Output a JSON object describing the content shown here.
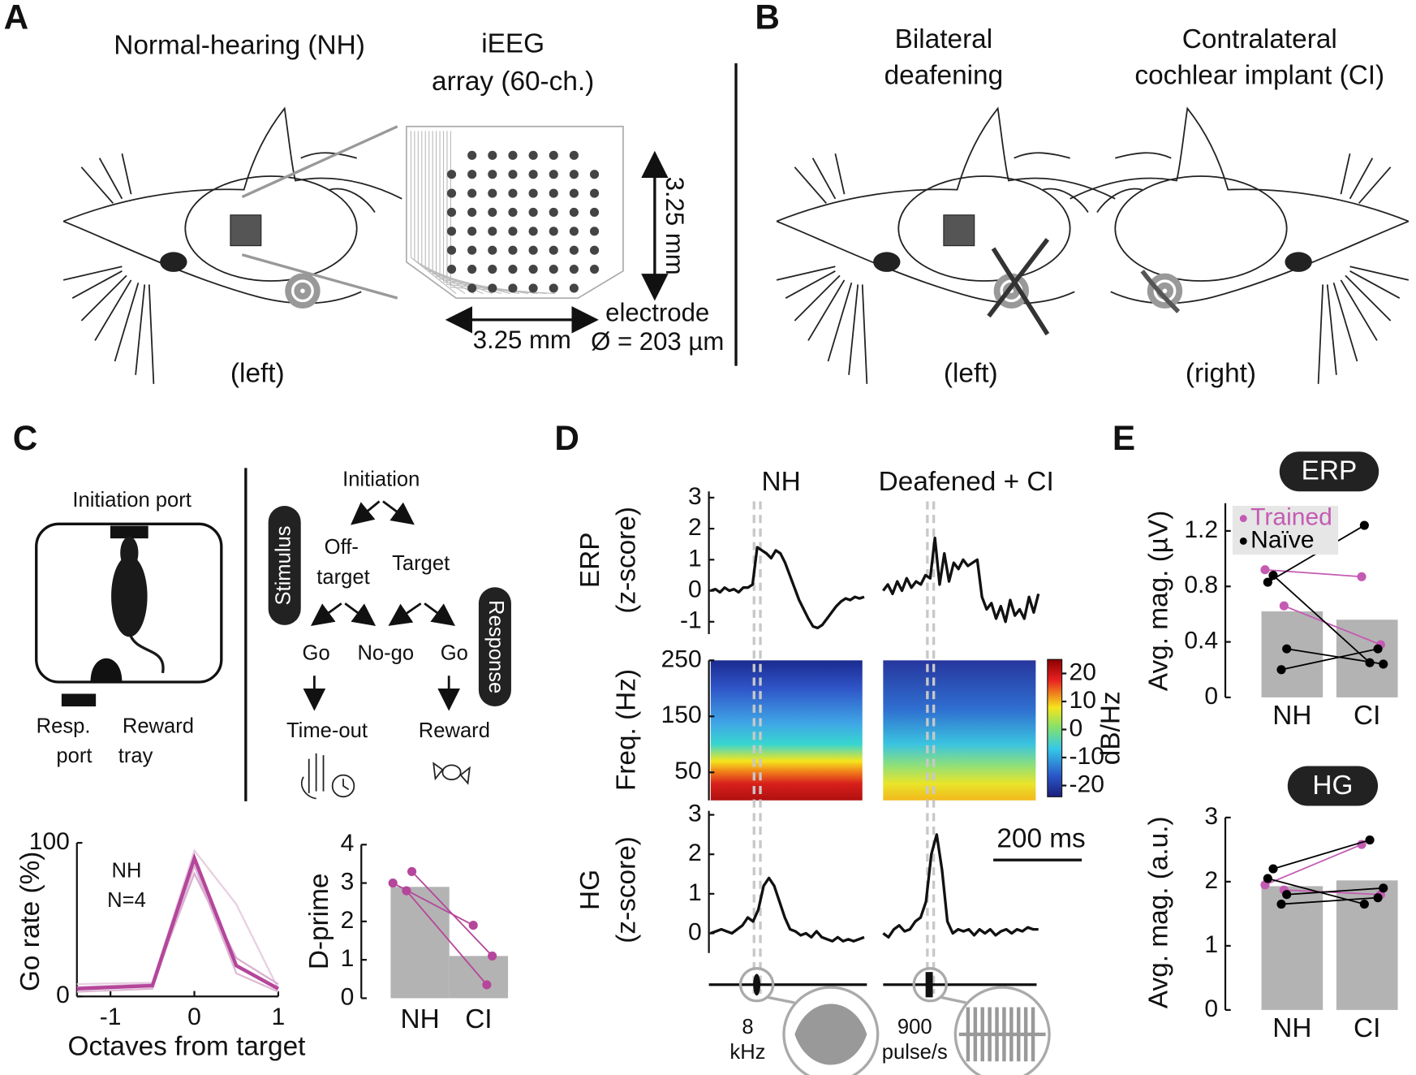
{
  "panels": {
    "a": {
      "letter": "A",
      "heading": "Normal-hearing (NH)",
      "array_title": [
        "iEEG",
        "array (60-ch.)"
      ],
      "height_label": "3.25 mm",
      "width_label": "3.25 mm",
      "electrode": [
        "electrode",
        "Ø = 203 µm"
      ],
      "side": "(left)"
    },
    "b": {
      "letter": "B",
      "deafening": [
        "Bilateral",
        "deafening"
      ],
      "implant": [
        "Contralateral",
        "cochlear implant (CI)"
      ],
      "left": "(left)",
      "right": "(right)"
    },
    "c": {
      "letter": "C",
      "initiation_port": "Initiation port",
      "resp_port": [
        "Resp.",
        "port"
      ],
      "reward_tray": [
        "Reward",
        "tray"
      ],
      "tree": {
        "initiation": "Initiation",
        "stimulus": "Stimulus",
        "off_target": [
          "Off-",
          "target"
        ],
        "target": "Target",
        "response": "Response",
        "go_left": "Go",
        "no_go": "No-go",
        "go_right": "Go",
        "time_out": "Time-out",
        "reward": "Reward"
      },
      "go_rate_note": [
        "NH",
        "N=4"
      ]
    },
    "d": {
      "letter": "D",
      "nh": "NH",
      "ci": "Deafened + CI",
      "scale_bar": "200 ms",
      "stim_nh": [
        "8",
        "kHz"
      ],
      "stim_ci": [
        "900",
        "pulse/s"
      ]
    },
    "e": {
      "letter": "E",
      "erp_badge": "ERP",
      "hg_badge": "HG"
    }
  },
  "chart_data": [
    {
      "type": "line",
      "xlabel": "Octaves from target",
      "ylabel": [
        "Go rate (%)"
      ],
      "x": [
        -1.4,
        -0.5,
        0,
        0.5,
        1
      ],
      "xlim": [
        -1.4,
        1
      ],
      "xticks": [
        -1,
        0,
        1
      ],
      "ylim": [
        0,
        100
      ],
      "yticks": [
        0,
        100
      ],
      "series": [
        {
          "color": "#e6cfe0",
          "values": [
            8,
            9,
            95,
            60,
            5
          ]
        },
        {
          "color": "#dcb8d3",
          "values": [
            3,
            5,
            85,
            15,
            3
          ]
        },
        {
          "color": "#d9aed0",
          "values": [
            6,
            8,
            80,
            25,
            8
          ]
        },
        {
          "color": "#b5469b",
          "values": [
            5,
            7,
            90,
            20,
            5
          ]
        }
      ]
    },
    {
      "type": "bar",
      "ylabel": [
        "D-prime"
      ],
      "categories": [
        "NH",
        "CI"
      ],
      "values": [
        2.9,
        1.1
      ],
      "color": "#b3b3b3",
      "ylim": [
        0,
        4
      ],
      "yticks": [
        0,
        1,
        2,
        3,
        4
      ],
      "points": [
        {
          "color": "#b5469b",
          "values": [
            [
              3.0,
              1.9
            ],
            [
              3.3,
              1.1
            ],
            [
              2.8,
              0.35
            ]
          ]
        }
      ]
    },
    {
      "type": "trace",
      "ylabel": [
        "ERP",
        "(z-score)"
      ],
      "ylim": [
        -1.4,
        3.2
      ],
      "yticks": [
        -1,
        0,
        1,
        2,
        3
      ],
      "color": "#111111",
      "series": [
        {
          "values": [
            0,
            0.05,
            -0.05,
            0.1,
            0,
            0.05,
            -0.05,
            0.1,
            0.1,
            0.2,
            1.4,
            1.3,
            1.2,
            1.05,
            1.3,
            1.2,
            0.9,
            0.5,
            0.1,
            -0.3,
            -0.6,
            -0.9,
            -1.15,
            -1.2,
            -1.1,
            -0.9,
            -0.7,
            -0.5,
            -0.35,
            -0.25,
            -0.3,
            -0.2,
            -0.25,
            -0.2
          ]
        },
        {
          "values": [
            0,
            0.2,
            -0.1,
            0.3,
            0,
            0.4,
            0.1,
            0.3,
            0.2,
            0.5,
            0.4,
            1.7,
            0.2,
            1.2,
            0.3,
            0.9,
            0.7,
            1.0,
            0.8,
            0.9,
            1.0,
            -0.2,
            -0.6,
            -0.4,
            -0.9,
            -0.5,
            -1.0,
            -0.3,
            -0.8,
            -0.6,
            -0.9,
            -0.2,
            -0.7,
            -0.1
          ]
        }
      ]
    },
    {
      "type": "heatmap",
      "ylabel": [
        "Freq. (Hz)"
      ],
      "ylim": [
        0,
        250
      ],
      "yticks": [
        50,
        150,
        250
      ],
      "clim": [
        -24,
        25
      ],
      "cticks": [
        20,
        10,
        0,
        -10,
        -20
      ],
      "colorbar_label": "dB/Hz"
    },
    {
      "type": "trace",
      "ylabel": [
        "HG",
        "(z-score)"
      ],
      "ylim": [
        -0.5,
        3.1
      ],
      "yticks": [
        0,
        1,
        2,
        3
      ],
      "color": "#111111",
      "series": [
        {
          "values": [
            0,
            0.05,
            0.1,
            0.05,
            0,
            0.1,
            0.2,
            0.4,
            0.3,
            0.6,
            1.2,
            1.4,
            1.2,
            0.8,
            0.4,
            0.1,
            0.05,
            -0.05,
            0,
            -0.1,
            0.05,
            -0.1,
            -0.15,
            -0.2,
            -0.1,
            -0.2,
            -0.15,
            -0.2,
            -0.15,
            -0.1
          ]
        },
        {
          "values": [
            0,
            -0.1,
            0.1,
            0.2,
            0.05,
            0.1,
            0.3,
            0.4,
            0.8,
            2.0,
            2.5,
            1.6,
            0.3,
            0,
            0.1,
            0.05,
            0.1,
            -0.05,
            0.1,
            0,
            0.1,
            -0.05,
            0.05,
            0.1,
            0,
            0.1,
            0.05,
            0.15,
            0.1,
            0.1
          ]
        }
      ]
    },
    {
      "type": "bar",
      "ylabel": [
        "Avg. mag. (µV)"
      ],
      "categories": [
        "NH",
        "CI"
      ],
      "values": [
        0.62,
        0.56
      ],
      "color": "#b3b3b3",
      "ylim": [
        0,
        1.4
      ],
      "yticks": [
        0,
        0.4,
        0.8,
        1.2
      ],
      "legend": "upper left",
      "points": [
        {
          "name": "Trained",
          "color": "#c45bb3",
          "values": [
            [
              0.92,
              0.87
            ],
            [
              0.66,
              0.38
            ]
          ]
        },
        {
          "name": "Naïve",
          "color": "#000000",
          "values": [
            [
              0.88,
              0.25
            ],
            [
              0.83,
              1.24
            ],
            [
              0.35,
              0.24
            ],
            [
              0.2,
              0.35
            ]
          ]
        }
      ]
    },
    {
      "type": "bar",
      "ylabel": [
        "Avg. mag. (a.u.)"
      ],
      "categories": [
        "NH",
        "CI"
      ],
      "values": [
        1.93,
        2.02
      ],
      "color": "#b3b3b3",
      "ylim": [
        0,
        3
      ],
      "yticks": [
        0,
        1,
        2,
        3
      ],
      "points": [
        {
          "name": "Trained",
          "color": "#c45bb3",
          "values": [
            [
              1.95,
              2.58
            ],
            [
              1.87,
              1.8
            ]
          ]
        },
        {
          "name": "Naïve",
          "color": "#000000",
          "values": [
            [
              2.2,
              2.65
            ],
            [
              2.05,
              1.65
            ],
            [
              1.8,
              1.9
            ],
            [
              1.65,
              1.75
            ]
          ]
        }
      ]
    }
  ]
}
